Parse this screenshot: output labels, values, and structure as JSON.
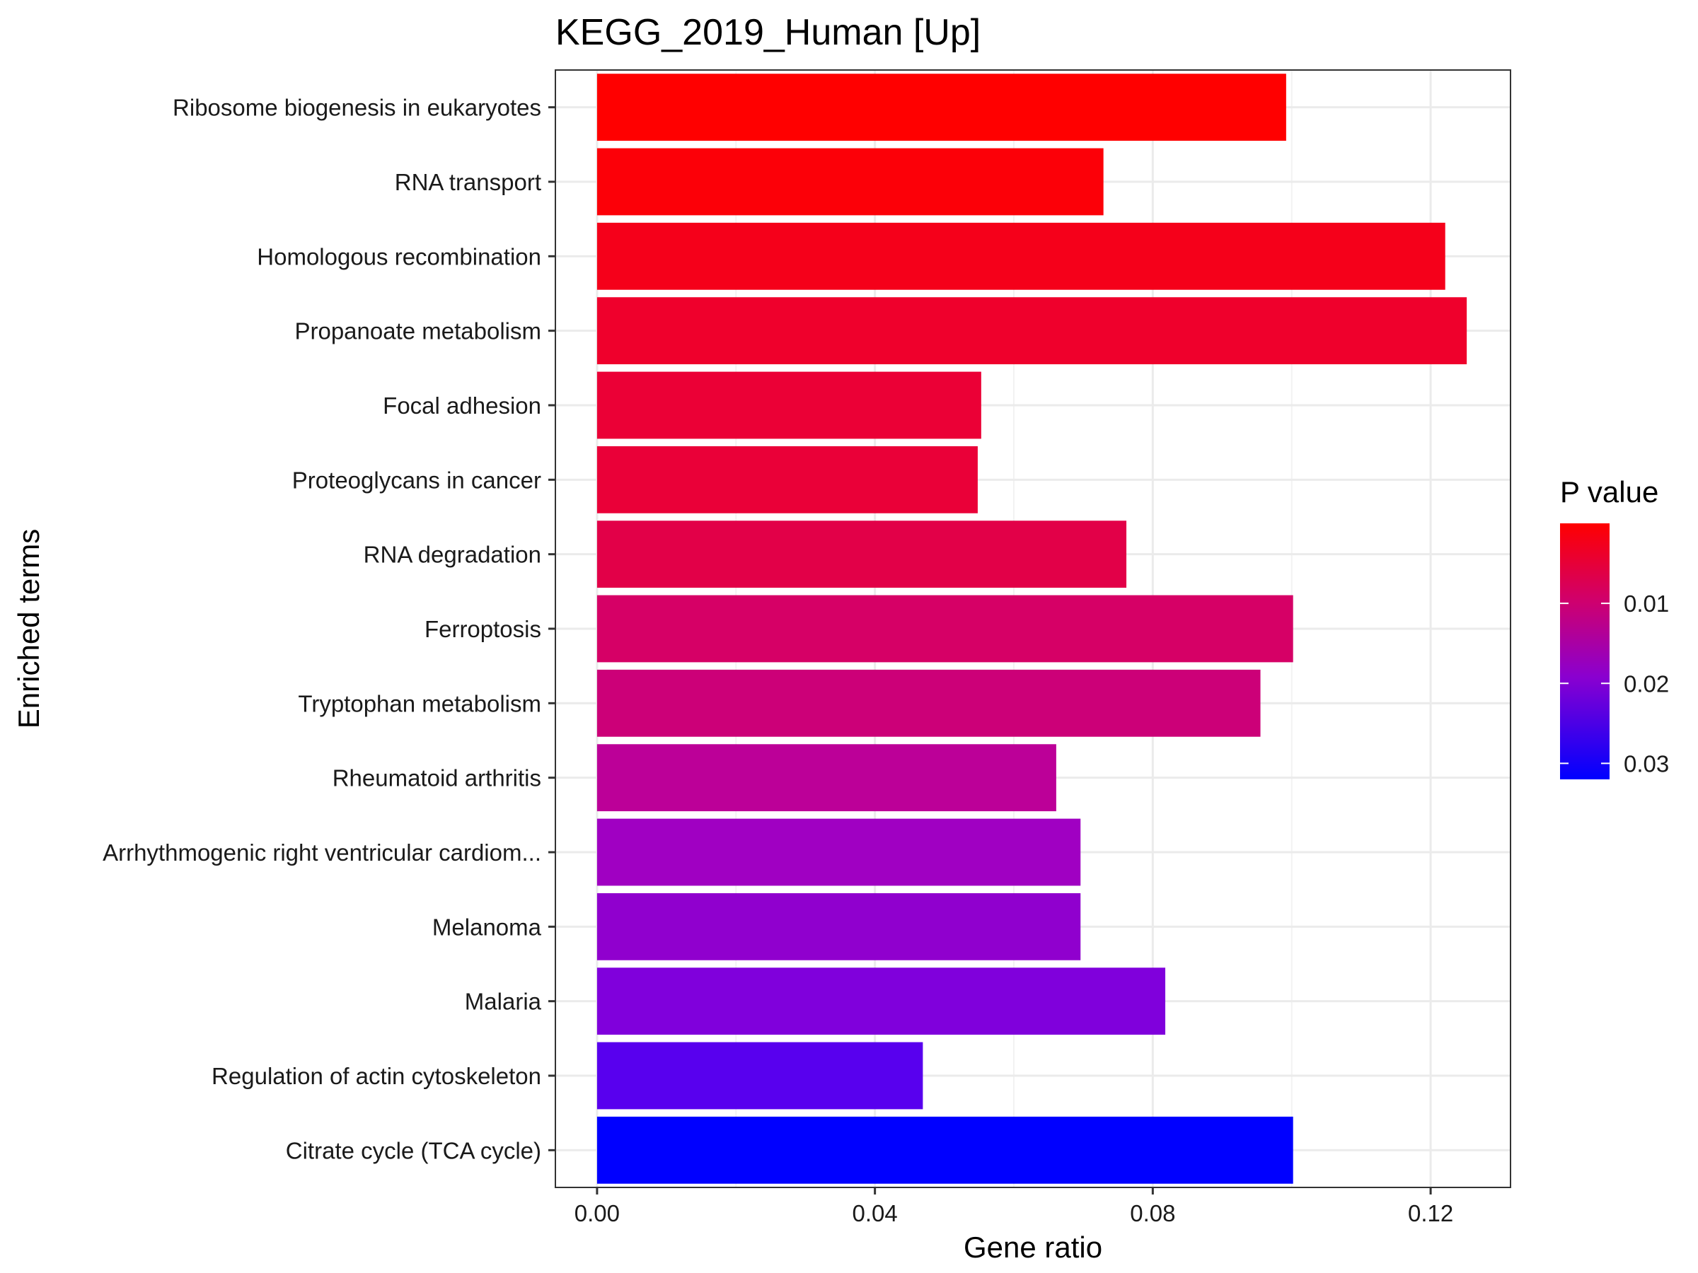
{
  "chart_data": {
    "type": "bar",
    "orientation": "horizontal",
    "title": "KEGG_2019_Human [Up]",
    "xlabel": "Gene ratio",
    "ylabel": "Enriched terms",
    "xlim": [
      -0.006,
      0.1315
    ],
    "x_ticks": [
      0.0,
      0.04,
      0.08,
      0.12
    ],
    "x_tick_labels": [
      "0.00",
      "0.04",
      "0.08",
      "0.12"
    ],
    "grid": true,
    "categories": [
      "Ribosome biogenesis in eukaryotes",
      "RNA transport",
      "Homologous recombination",
      "Propanoate metabolism",
      "Focal adhesion",
      "Proteoglycans in cancer",
      "RNA degradation",
      "Ferroptosis",
      "Tryptophan metabolism",
      "Rheumatoid arthritis",
      "Arrhythmogenic right ventricular cardiom...",
      "Melanoma",
      "Malaria",
      "Regulation of actin cytoskeleton",
      "Citrate cycle (TCA cycle)"
    ],
    "values": [
      0.0992,
      0.0729,
      0.1221,
      0.1252,
      0.0553,
      0.0548,
      0.0762,
      0.1002,
      0.0955,
      0.0661,
      0.0696,
      0.0696,
      0.0818,
      0.0469,
      0.1002
    ],
    "p_values": [
      0.0001,
      0.0009,
      0.0032,
      0.006,
      0.0078,
      0.0081,
      0.0101,
      0.0142,
      0.0167,
      0.0202,
      0.0247,
      0.025,
      0.0258,
      0.0283,
      0.0316
    ],
    "bar_colors": [
      "#FF0000",
      "#FC0008",
      "#F5001A",
      "#EF002C",
      "#EB0036",
      "#EA0038",
      "#E20048",
      "#D60066",
      "#CC0078",
      "#BC0098",
      "#A000C2",
      "#9000CE",
      "#8000DC",
      "#5800EE",
      "#0000FF"
    ],
    "legend": {
      "title": "P value",
      "position": "right",
      "scale_min": 0.0,
      "scale_max": 0.032,
      "tick_values": [
        0.01,
        0.02,
        0.03
      ],
      "tick_labels": [
        "0.01",
        "0.02",
        "0.03"
      ],
      "low_color": "#FF0000",
      "high_color": "#0000FF"
    }
  }
}
